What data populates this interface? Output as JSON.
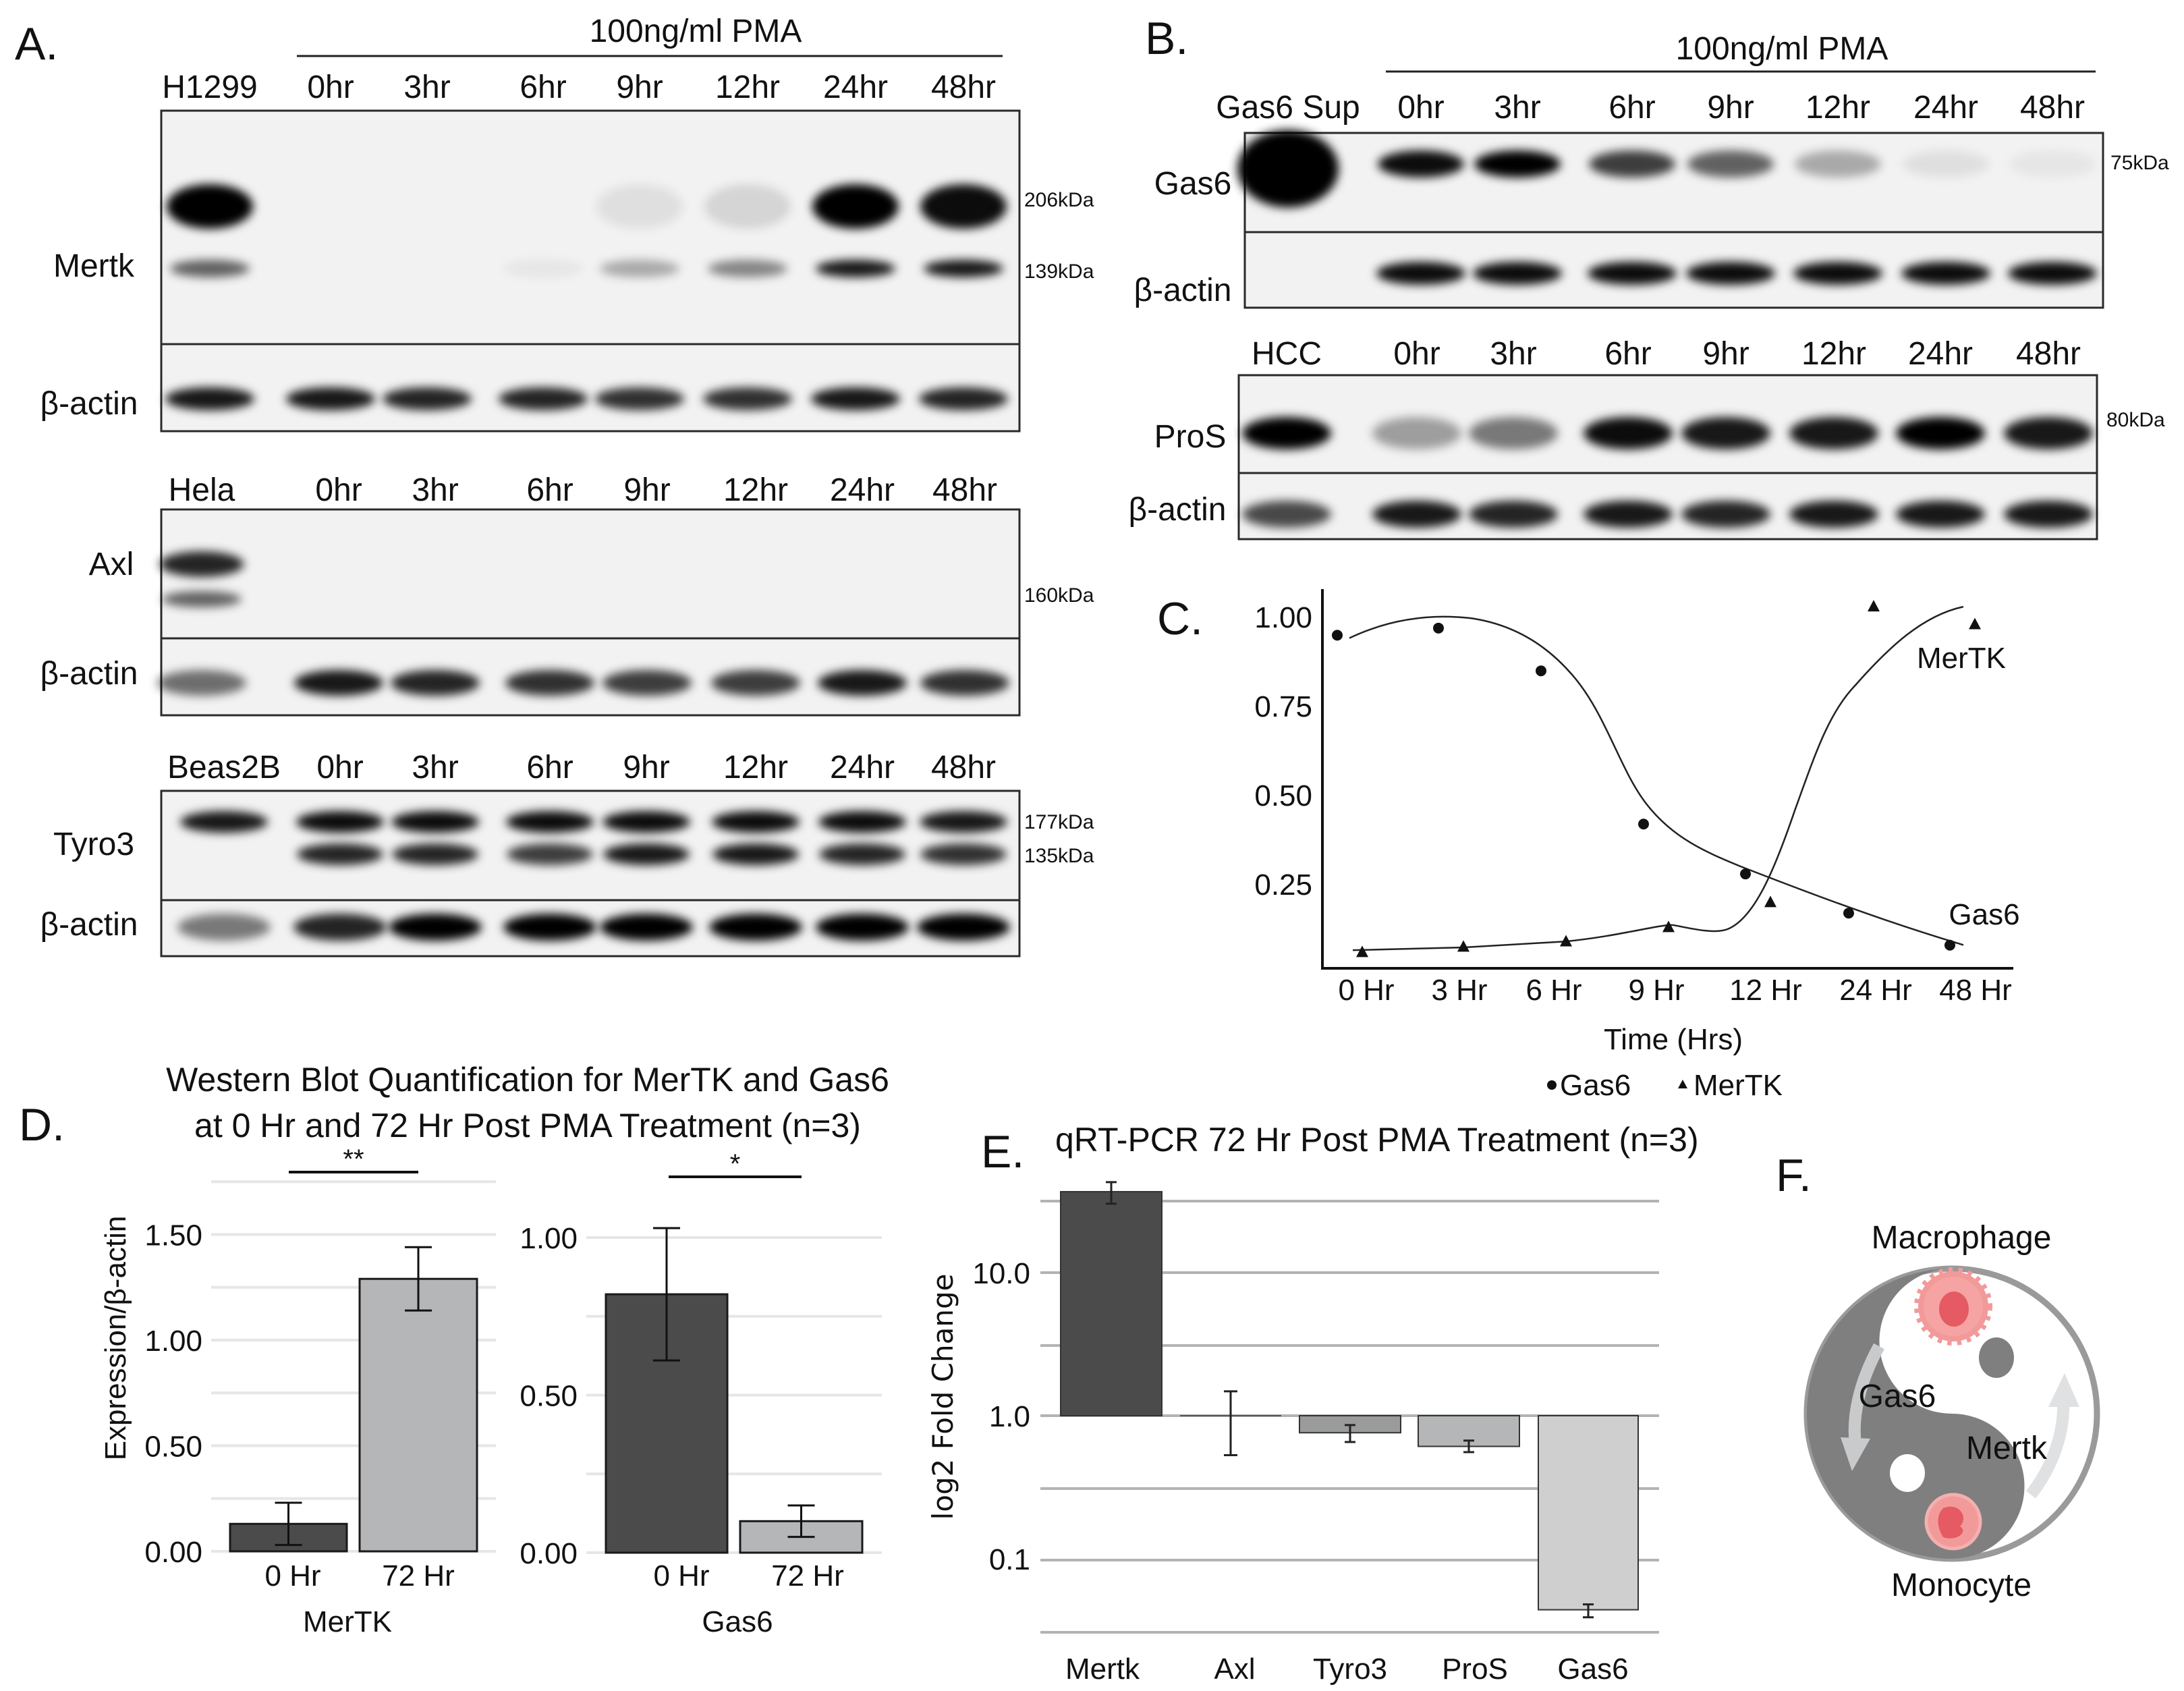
{
  "panel_labels": {
    "a": "A.",
    "b": "B.",
    "c": "C.",
    "d": "D.",
    "e": "E.",
    "f": "F."
  },
  "panel_a": {
    "treatment": "100ng/ml PMA",
    "blots": [
      {
        "control": "H1299",
        "lanes": [
          "0hr",
          "3hr",
          "6hr",
          "9hr",
          "12hr",
          "24hr",
          "48hr"
        ],
        "target": "Mertk",
        "loading": "β-actin",
        "kda": [
          "206kDa",
          "139kDa"
        ],
        "target_band_intensity": [
          [
            1,
            0,
            0,
            0,
            0.08,
            0.12,
            1,
            0.95
          ],
          [
            0.6,
            0,
            0,
            0.05,
            0.3,
            0.45,
            0.9,
            0.9
          ]
        ],
        "loading_band_intensity": [
          0.9,
          0.9,
          0.85,
          0.85,
          0.8,
          0.8,
          0.9,
          0.85
        ]
      },
      {
        "control": "Hela",
        "lanes": [
          "0hr",
          "3hr",
          "6hr",
          "9hr",
          "12hr",
          "24hr",
          "48hr"
        ],
        "target": "Axl",
        "loading": "β-actin",
        "kda": [
          "160kDa"
        ],
        "target_band_intensity": [
          [
            0.85,
            0,
            0,
            0,
            0,
            0,
            0,
            0
          ],
          [
            0.6,
            0,
            0,
            0,
            0,
            0,
            0,
            0
          ]
        ],
        "loading_band_intensity": [
          0.55,
          0.9,
          0.85,
          0.8,
          0.75,
          0.75,
          0.9,
          0.8
        ]
      },
      {
        "control": "Beas2B",
        "lanes": [
          "0hr",
          "3hr",
          "6hr",
          "9hr",
          "12hr",
          "24hr",
          "48hr"
        ],
        "target": "Tyro3",
        "loading": "β-actin",
        "kda": [
          "177kDa",
          "135kDa"
        ],
        "target_band_intensity": [
          [
            0.9,
            0.95,
            0.95,
            0.95,
            0.95,
            0.95,
            0.95,
            0.9
          ],
          [
            0,
            0.85,
            0.85,
            0.75,
            0.9,
            0.9,
            0.85,
            0.8
          ]
        ],
        "loading_band_intensity": [
          0.5,
          0.85,
          1,
          1,
          1,
          1,
          1,
          1
        ]
      }
    ]
  },
  "panel_b": {
    "treatment": "100ng/ml PMA",
    "blots": [
      {
        "control": "Gas6 Sup",
        "lanes": [
          "0hr",
          "3hr",
          "6hr",
          "9hr",
          "12hr",
          "24hr",
          "48hr"
        ],
        "target": "Gas6",
        "loading": "β-actin",
        "kda": [
          "75kDa"
        ],
        "target_band_intensity": [
          [
            1,
            0.95,
            1,
            0.75,
            0.6,
            0.3,
            0.08,
            0.05
          ]
        ],
        "loading_band_intensity": [
          0,
          0.95,
          0.95,
          0.95,
          0.95,
          0.95,
          0.95,
          0.95
        ]
      },
      {
        "control": "HCC",
        "lanes": [
          "0hr",
          "3hr",
          "6hr",
          "9hr",
          "12hr",
          "24hr",
          "48hr"
        ],
        "target": "ProS",
        "loading": "β-actin",
        "kda": [
          "80kDa"
        ],
        "target_band_intensity": [
          [
            1,
            0.35,
            0.5,
            0.95,
            0.9,
            0.9,
            1,
            0.9
          ]
        ],
        "loading_band_intensity": [
          0.7,
          0.9,
          0.85,
          0.9,
          0.85,
          0.9,
          0.9,
          0.9
        ]
      }
    ]
  },
  "panel_f": {
    "top": "Macrophage",
    "bottom": "Monocyte",
    "left": "Gas6",
    "right": "Mertk"
  },
  "colors": {
    "dark_bar": "#4a4b4a",
    "light_bar": "#b5b6b7",
    "tyro3_bar": "#9a9b9b",
    "gas6_bar": "#cfcfcf",
    "cell_red": "#f29a9a",
    "nucleus_red": "#e55a63",
    "yinyang_gray": "#7f7f7f"
  },
  "chart_data": [
    {
      "type": "line",
      "xlabel": "Time (Hrs)",
      "categories": [
        "0 Hr",
        "3 Hr",
        "6 Hr",
        "9 Hr",
        "12 Hr",
        "24 Hr",
        "48 Hr"
      ],
      "yticks": [
        "0.25",
        "0.50",
        "0.75",
        "1.00"
      ],
      "ylim": [
        0,
        1.05
      ],
      "legend_position": "bottom",
      "series": [
        {
          "name": "Gas6",
          "marker": "circle",
          "values": [
            0.95,
            0.97,
            0.85,
            0.42,
            0.28,
            0.17,
            0.08
          ]
        },
        {
          "name": "MerTK",
          "marker": "triangle",
          "values": [
            0.06,
            0.075,
            0.09,
            0.13,
            0.2,
            1.03,
            0.98
          ]
        }
      ]
    },
    {
      "type": "bar",
      "title_lines": [
        "Western Blot Quantification for MerTK and Gas6",
        "at 0 Hr and 72 Hr Post PMA Treatment (n=3)"
      ],
      "ylabel": "Expression/β-actin",
      "panels": [
        {
          "group": "MerTK",
          "categories": [
            "0 Hr",
            "72 Hr"
          ],
          "values": [
            0.13,
            1.29
          ],
          "errors": [
            0.1,
            0.15
          ],
          "significance": "**",
          "yticks": [
            "0.00",
            "0.50",
            "1.00",
            "1.50"
          ],
          "ylim": [
            0,
            1.75
          ]
        },
        {
          "group": "Gas6",
          "categories": [
            "0 Hr",
            "72 Hr"
          ],
          "values": [
            0.82,
            0.1
          ],
          "errors": [
            0.21,
            0.05
          ],
          "significance": "*",
          "yticks": [
            "0.00",
            "0.50",
            "1.00"
          ],
          "ylim": [
            0,
            1.0
          ]
        }
      ]
    },
    {
      "type": "bar",
      "title": "qRT-PCR 72 Hr Post PMA Treatment (n=3)",
      "ylabel": "log2 Fold Change",
      "yscale": "log",
      "yticks": [
        "0.1",
        "1.0",
        "10.0"
      ],
      "categories": [
        "Mertk",
        "Axl",
        "Tyro3",
        "ProS",
        "Gas6"
      ],
      "values": [
        36.8,
        1.0,
        0.76,
        0.61,
        0.044
      ],
      "error_low": [
        30.3,
        0.53,
        0.655,
        0.556,
        0.039
      ],
      "error_high": [
        42.9,
        1.48,
        0.86,
        0.67,
        0.048
      ]
    }
  ]
}
